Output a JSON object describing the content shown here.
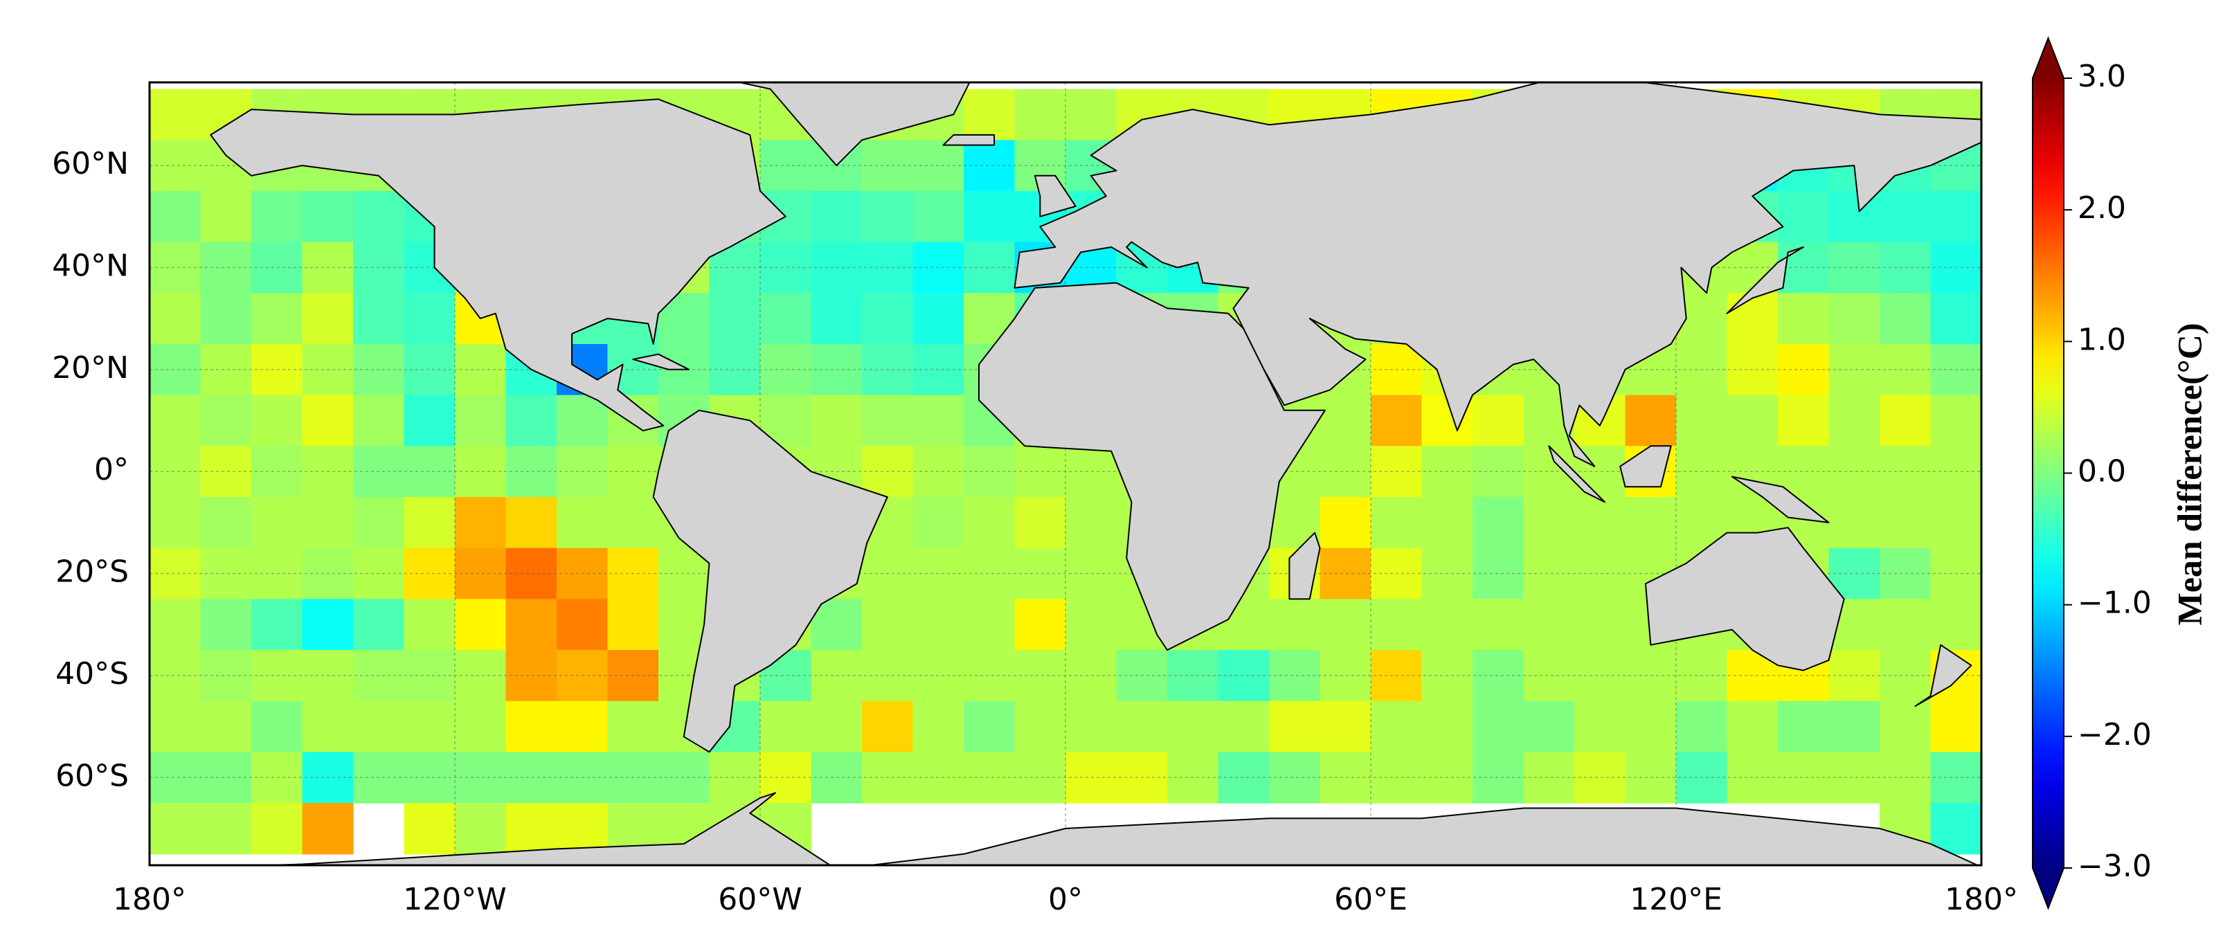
{
  "chart_data": {
    "type": "heatmap",
    "colormap": "jet",
    "colorbar_label": "Mean difference(°C)",
    "clim": [
      -3,
      3
    ],
    "cticks": [
      {
        "value": 3,
        "label": "3.0"
      },
      {
        "value": 2,
        "label": "2.0"
      },
      {
        "value": 1,
        "label": "1.0"
      },
      {
        "value": 0,
        "label": "0.0"
      },
      {
        "value": -1,
        "label": "−1.0"
      },
      {
        "value": -2,
        "label": "−2.0"
      },
      {
        "value": -3,
        "label": "−3.0"
      }
    ],
    "xlim": [
      -180,
      180
    ],
    "ylim": [
      -77.2,
      76.3
    ],
    "xticks": [
      {
        "value": -180,
        "label": "180°"
      },
      {
        "value": -120,
        "label": "120°W"
      },
      {
        "value": -60,
        "label": "60°W"
      },
      {
        "value": 0,
        "label": "0°"
      },
      {
        "value": 60,
        "label": "60°E"
      },
      {
        "value": 120,
        "label": "120°E"
      },
      {
        "value": 180,
        "label": "180°"
      }
    ],
    "yticks": [
      {
        "value": 60,
        "label": "60°N"
      },
      {
        "value": 40,
        "label": "40°N"
      },
      {
        "value": 20,
        "label": "20°N"
      },
      {
        "value": 0,
        "label": "0°"
      },
      {
        "value": -20,
        "label": "20°S"
      },
      {
        "value": -40,
        "label": "40°S"
      },
      {
        "value": -60,
        "label": "60°S"
      }
    ],
    "grid": true,
    "lon_centers": [
      -175,
      -165,
      -155,
      -145,
      -135,
      -125,
      -115,
      -105,
      -95,
      -85,
      -75,
      -65,
      -55,
      -45,
      -35,
      -25,
      -15,
      -5,
      5,
      15,
      25,
      35,
      45,
      55,
      65,
      75,
      85,
      95,
      105,
      115,
      125,
      135,
      145,
      155,
      165,
      175
    ],
    "lat_centers": [
      70,
      60,
      50,
      40,
      30,
      20,
      10,
      0,
      -10,
      -20,
      -30,
      -40,
      -50,
      -60,
      -70
    ],
    "values": [
      [
        0.5,
        0.5,
        0.3,
        0.3,
        0.3,
        0.3,
        0.3,
        0.3,
        0.3,
        0.3,
        0.3,
        0.3,
        0.3,
        0.3,
        0.3,
        0.3,
        0.5,
        0.3,
        0.3,
        0.5,
        0.5,
        0.5,
        0.6,
        0.6,
        0.8,
        0.8,
        0.5,
        0.5,
        0.5,
        0.5,
        0.5,
        0.8,
        0.5,
        0.5,
        0.3,
        0.3
      ],
      [
        0.3,
        0.3,
        0.2,
        0.2,
        0.2,
        0.2,
        0.3,
        0.3,
        0.3,
        0.3,
        0.3,
        0.3,
        -0.1,
        -0.1,
        0.0,
        0.0,
        -0.8,
        0.0,
        -0.2,
        0.3,
        0.0,
        0.3,
        0.3,
        0.3,
        0.3,
        0.3,
        0.3,
        0.3,
        0.3,
        0.3,
        0.0,
        -0.7,
        -0.5,
        -0.4,
        -0.4,
        -0.3
      ],
      [
        0.0,
        0.3,
        -0.1,
        -0.2,
        -0.3,
        -0.4,
        0.3,
        0.3,
        0.3,
        0.3,
        0.3,
        -0.2,
        -0.3,
        -0.4,
        -0.3,
        -0.2,
        -0.6,
        -0.6,
        -0.5,
        0.0,
        0.0,
        0.3,
        0.3,
        0.3,
        0.3,
        0.3,
        0.3,
        0.3,
        0.3,
        0.3,
        0.3,
        -0.3,
        -0.4,
        -0.5,
        -0.5,
        -0.5
      ],
      [
        0.2,
        0.0,
        -0.2,
        0.3,
        -0.3,
        -0.5,
        0.3,
        0.3,
        0.3,
        0.3,
        0.3,
        -0.3,
        -0.4,
        -0.5,
        -0.5,
        -0.7,
        -0.4,
        -0.9,
        -0.8,
        -0.5,
        -0.6,
        0.0,
        0.3,
        0.7,
        0.3,
        0.3,
        0.3,
        0.3,
        0.3,
        0.3,
        0.3,
        0.3,
        -0.3,
        -0.2,
        -0.3,
        -0.6
      ],
      [
        0.3,
        0.0,
        0.2,
        0.5,
        -0.3,
        -0.4,
        0.8,
        0.3,
        -0.3,
        -0.3,
        -0.1,
        -0.3,
        -0.2,
        -0.5,
        -0.4,
        -0.6,
        0.2,
        -0.2,
        -0.5,
        0.0,
        0.0,
        0.3,
        0.3,
        0.3,
        0.3,
        0.3,
        0.3,
        0.3,
        0.3,
        0.3,
        0.3,
        0.6,
        0.3,
        0.2,
        0.0,
        -0.5
      ],
      [
        0.0,
        0.3,
        0.6,
        0.3,
        0.0,
        -0.3,
        0.3,
        -0.5,
        -1.5,
        -0.3,
        -0.1,
        -0.3,
        0.0,
        -0.1,
        -0.3,
        -0.4,
        0.0,
        -0.2,
        0.0,
        0.3,
        0.3,
        0.3,
        0.3,
        0.3,
        0.8,
        0.6,
        0.3,
        0.3,
        0.3,
        0.3,
        0.3,
        0.6,
        0.8,
        0.3,
        0.3,
        0.0
      ],
      [
        0.3,
        0.2,
        0.3,
        0.6,
        0.2,
        -0.5,
        0.2,
        -0.3,
        0.0,
        0.2,
        0.0,
        0.3,
        0.2,
        0.3,
        0.2,
        0.2,
        0.0,
        0.3,
        0.3,
        0.3,
        0.3,
        0.3,
        0.3,
        0.3,
        1.2,
        0.7,
        0.6,
        0.3,
        0.6,
        1.3,
        0.3,
        0.3,
        0.6,
        0.3,
        0.6,
        0.3
      ],
      [
        0.3,
        0.5,
        0.2,
        0.3,
        0.0,
        0.0,
        0.3,
        0.0,
        0.2,
        0.3,
        0.3,
        0.3,
        0.3,
        0.3,
        0.5,
        0.3,
        0.2,
        0.3,
        0.3,
        0.3,
        0.3,
        0.3,
        0.3,
        0.3,
        0.6,
        0.3,
        0.2,
        0.3,
        0.3,
        0.8,
        0.3,
        0.3,
        0.3,
        0.3,
        0.3,
        0.3
      ],
      [
        0.3,
        0.2,
        0.3,
        0.3,
        0.2,
        0.5,
        1.2,
        1.0,
        0.3,
        0.3,
        0.3,
        0.3,
        0.3,
        0.3,
        0.3,
        0.2,
        0.3,
        0.5,
        0.3,
        0.3,
        0.3,
        0.3,
        0.3,
        0.8,
        0.3,
        0.3,
        0.0,
        0.3,
        0.3,
        0.3,
        0.3,
        0.3,
        0.3,
        0.3,
        0.3,
        0.3
      ],
      [
        0.5,
        0.3,
        0.3,
        0.2,
        0.3,
        0.9,
        1.3,
        1.6,
        1.3,
        0.9,
        0.3,
        0.3,
        0.3,
        0.3,
        0.3,
        0.3,
        0.3,
        0.3,
        0.3,
        0.3,
        0.3,
        0.3,
        0.6,
        1.2,
        0.6,
        0.3,
        0.0,
        0.3,
        0.3,
        0.3,
        0.3,
        0.3,
        0.3,
        -0.3,
        0.0,
        0.3
      ],
      [
        0.3,
        0.0,
        -0.3,
        -0.7,
        -0.3,
        0.3,
        0.8,
        1.3,
        1.5,
        0.9,
        0.3,
        0.3,
        0.3,
        0.0,
        0.3,
        0.3,
        0.3,
        0.8,
        0.3,
        0.3,
        0.3,
        0.3,
        0.3,
        0.3,
        0.3,
        0.3,
        0.3,
        0.3,
        0.3,
        0.3,
        0.3,
        0.3,
        0.3,
        0.3,
        0.3,
        0.3
      ],
      [
        0.3,
        0.2,
        0.3,
        0.3,
        0.2,
        0.2,
        0.3,
        1.3,
        1.2,
        1.4,
        0.3,
        0.3,
        -0.2,
        0.3,
        0.3,
        0.3,
        0.3,
        0.3,
        0.3,
        0.0,
        -0.2,
        -0.4,
        0.0,
        0.3,
        1.0,
        0.3,
        0.0,
        0.3,
        0.3,
        0.3,
        0.3,
        0.8,
        0.8,
        0.5,
        0.3,
        0.8
      ],
      [
        0.3,
        0.3,
        0.0,
        0.3,
        0.3,
        0.3,
        0.3,
        0.8,
        0.8,
        0.3,
        0.3,
        -0.2,
        0.3,
        0.3,
        1.0,
        0.3,
        0.0,
        0.3,
        0.3,
        0.3,
        0.3,
        0.3,
        0.6,
        0.6,
        0.3,
        0.3,
        0.0,
        0.0,
        0.3,
        0.3,
        0.0,
        0.3,
        0.0,
        0.0,
        0.3,
        0.8
      ],
      [
        0.0,
        0.0,
        0.3,
        -0.6,
        0.0,
        0.0,
        0.0,
        0.0,
        0.0,
        0.0,
        0.0,
        0.3,
        0.6,
        0.0,
        0.3,
        0.3,
        0.3,
        0.3,
        0.6,
        0.6,
        0.3,
        -0.2,
        0.0,
        0.3,
        0.3,
        0.3,
        0.0,
        0.3,
        0.5,
        0.3,
        -0.3,
        0.3,
        0.3,
        0.3,
        0.3,
        -0.2
      ],
      [
        0.3,
        0.3,
        0.5,
        1.3,
        null,
        0.6,
        0.3,
        0.6,
        0.6,
        0.3,
        0.3,
        0.3,
        0.3,
        null,
        null,
        null,
        null,
        null,
        null,
        null,
        null,
        null,
        null,
        null,
        null,
        null,
        null,
        null,
        null,
        null,
        null,
        null,
        null,
        null,
        0.3,
        -0.5
      ]
    ]
  }
}
